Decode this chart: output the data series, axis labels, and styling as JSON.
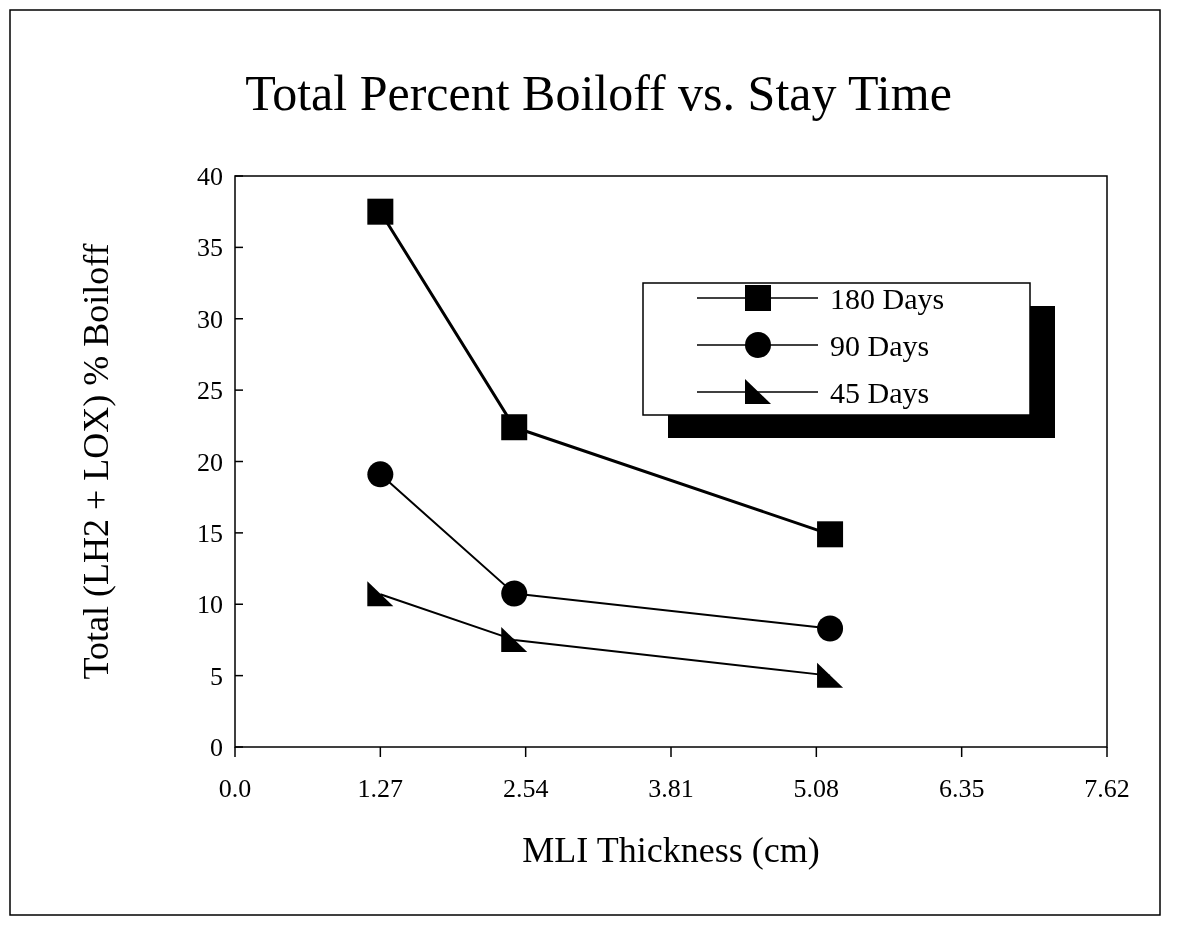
{
  "chart_data": {
    "type": "line",
    "title": "Total Percent Boiloff vs. Stay Time",
    "xlabel": "MLI Thickness (cm)",
    "ylabel": "Total (LH2 + LOX) % Boiloff",
    "xlim": [
      0,
      7.62
    ],
    "xticks": [
      {
        "value": 0,
        "label": "0.0"
      },
      1.27,
      2.54,
      3.81,
      5.08,
      6.35,
      7.62
    ],
    "ylim": [
      0,
      40
    ],
    "yticks": [
      0,
      5,
      10,
      15,
      20,
      25,
      30,
      35,
      40
    ],
    "legend": "top right",
    "grid": false,
    "line_style": "solid",
    "series": [
      {
        "name": "180 Days",
        "color": "#000000",
        "marker": "square",
        "x": [
          1.27,
          2.44,
          5.2
        ],
        "values": [
          37.5,
          22.4,
          14.9
        ]
      },
      {
        "name": "90 Days",
        "color": "#000000",
        "marker": "circle",
        "x": [
          1.27,
          2.44,
          5.2
        ],
        "values": [
          19.1,
          10.75,
          8.3
        ]
      },
      {
        "name": "45 Days",
        "color": "#000000",
        "marker": "triangle",
        "x": [
          1.27,
          2.44,
          5.2
        ],
        "values": [
          10.7,
          7.5,
          5.0
        ]
      }
    ]
  }
}
